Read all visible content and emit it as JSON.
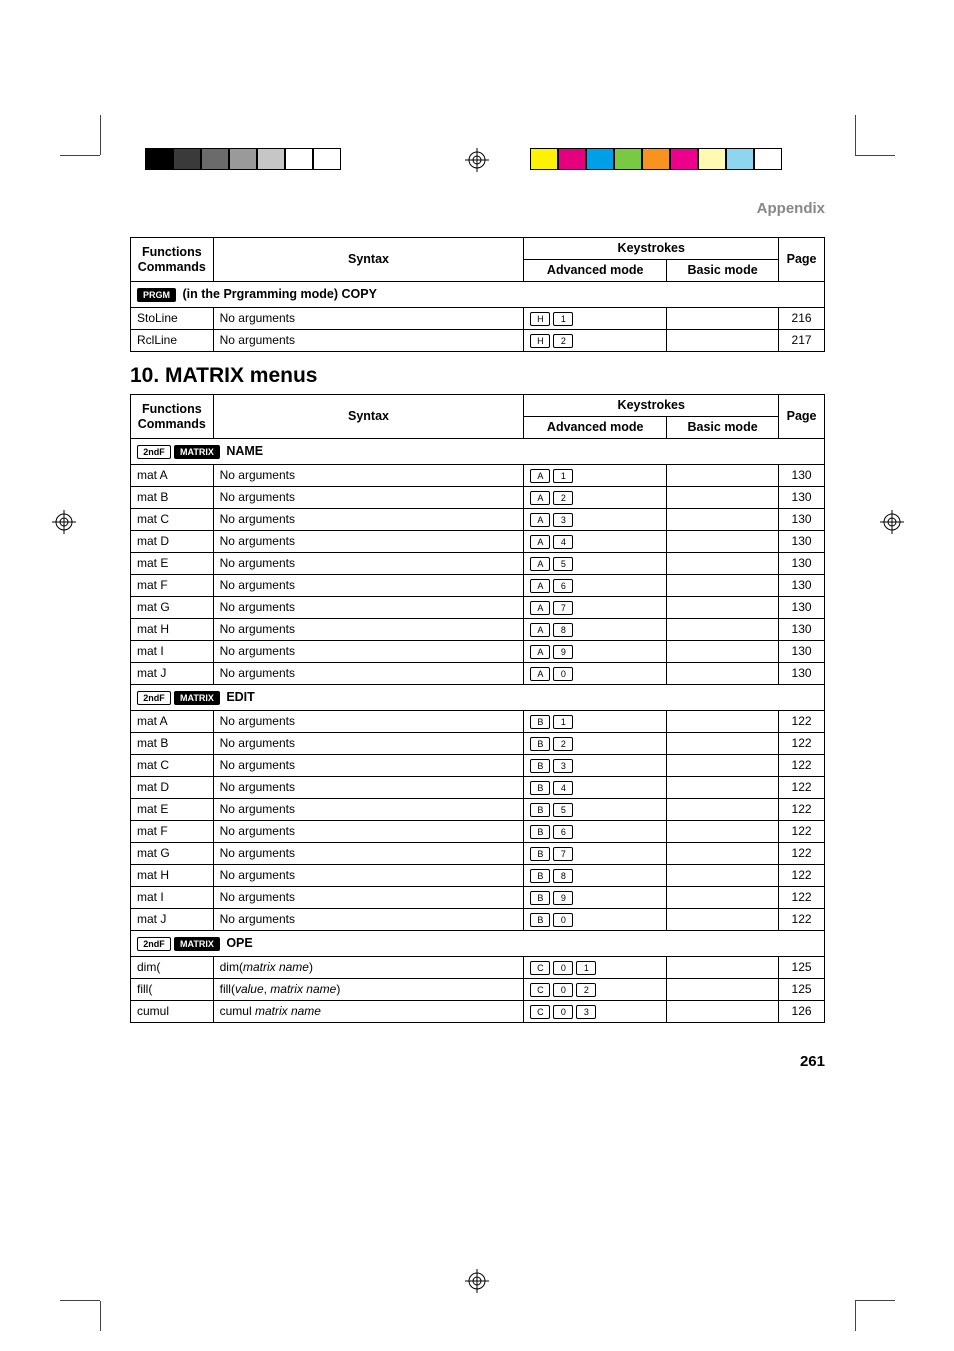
{
  "header": {
    "appendix": "Appendix"
  },
  "colorbar_left": [
    "#000000",
    "#3a3a3a",
    "#6b6b6b",
    "#9a9a9a",
    "#c6c6c6",
    "#ffffff",
    "#ffffff"
  ],
  "colorbar_right": [
    "#fff200",
    "#e4007f",
    "#00a0e9",
    "#7ac943",
    "#f7931e",
    "#ec008c",
    "#fff9b1",
    "#8ed6f0",
    "#ffffff"
  ],
  "table1": {
    "head": {
      "functions": "Functions",
      "commands": "Commands",
      "syntax": "Syntax",
      "keystrokes": "Keystrokes",
      "advanced": "Advanced mode",
      "basic": "Basic mode",
      "page": "Page"
    },
    "section": {
      "prefix_key": "PRGM",
      "suffix": " (in the Prgramming mode) COPY"
    },
    "rows": [
      {
        "cmd": "StoLine",
        "syn": "No arguments",
        "keys": [
          "H",
          "1"
        ],
        "page": "216"
      },
      {
        "cmd": "RclLine",
        "syn": "No arguments",
        "keys": [
          "H",
          "2"
        ],
        "page": "217"
      }
    ]
  },
  "title": "10. MATRIX menus",
  "table2": {
    "head": {
      "functions": "Functions",
      "commands": "Commands",
      "syntax": "Syntax",
      "keystrokes": "Keystrokes",
      "advanced": "Advanced mode",
      "basic": "Basic mode",
      "page": "Page"
    },
    "sections": [
      {
        "prefix_keys": [
          "2ndF",
          "MATRIX"
        ],
        "suffix": " NAME",
        "rows": [
          {
            "cmd": "mat A",
            "syn": "No arguments",
            "keys": [
              "A",
              "1"
            ],
            "page": "130"
          },
          {
            "cmd": "mat B",
            "syn": "No arguments",
            "keys": [
              "A",
              "2"
            ],
            "page": "130"
          },
          {
            "cmd": "mat C",
            "syn": "No arguments",
            "keys": [
              "A",
              "3"
            ],
            "page": "130"
          },
          {
            "cmd": "mat D",
            "syn": "No arguments",
            "keys": [
              "A",
              "4"
            ],
            "page": "130"
          },
          {
            "cmd": "mat E",
            "syn": "No arguments",
            "keys": [
              "A",
              "5"
            ],
            "page": "130"
          },
          {
            "cmd": "mat F",
            "syn": "No arguments",
            "keys": [
              "A",
              "6"
            ],
            "page": "130"
          },
          {
            "cmd": "mat G",
            "syn": "No arguments",
            "keys": [
              "A",
              "7"
            ],
            "page": "130"
          },
          {
            "cmd": "mat H",
            "syn": "No arguments",
            "keys": [
              "A",
              "8"
            ],
            "page": "130"
          },
          {
            "cmd": "mat I",
            "syn": "No arguments",
            "keys": [
              "A",
              "9"
            ],
            "page": "130"
          },
          {
            "cmd": "mat J",
            "syn": "No arguments",
            "keys": [
              "A",
              "0"
            ],
            "page": "130"
          }
        ]
      },
      {
        "prefix_keys": [
          "2ndF",
          "MATRIX"
        ],
        "suffix": " EDIT",
        "rows": [
          {
            "cmd": "mat A",
            "syn": "No arguments",
            "keys": [
              "B",
              "1"
            ],
            "page": "122"
          },
          {
            "cmd": "mat B",
            "syn": "No arguments",
            "keys": [
              "B",
              "2"
            ],
            "page": "122"
          },
          {
            "cmd": "mat C",
            "syn": "No arguments",
            "keys": [
              "B",
              "3"
            ],
            "page": "122"
          },
          {
            "cmd": "mat D",
            "syn": "No arguments",
            "keys": [
              "B",
              "4"
            ],
            "page": "122"
          },
          {
            "cmd": "mat E",
            "syn": "No arguments",
            "keys": [
              "B",
              "5"
            ],
            "page": "122"
          },
          {
            "cmd": "mat F",
            "syn": "No arguments",
            "keys": [
              "B",
              "6"
            ],
            "page": "122"
          },
          {
            "cmd": "mat G",
            "syn": "No arguments",
            "keys": [
              "B",
              "7"
            ],
            "page": "122"
          },
          {
            "cmd": "mat H",
            "syn": "No arguments",
            "keys": [
              "B",
              "8"
            ],
            "page": "122"
          },
          {
            "cmd": "mat I",
            "syn": "No arguments",
            "keys": [
              "B",
              "9"
            ],
            "page": "122"
          },
          {
            "cmd": "mat J",
            "syn": "No arguments",
            "keys": [
              "B",
              "0"
            ],
            "page": "122"
          }
        ]
      },
      {
        "prefix_keys": [
          "2ndF",
          "MATRIX"
        ],
        "suffix": " OPE",
        "rows": [
          {
            "cmd": "dim(",
            "syn_html": "dim(<em>matrix name</em>)",
            "keys": [
              "C",
              "0",
              "1"
            ],
            "page": "125"
          },
          {
            "cmd": "fill(",
            "syn_html": "fill(<em>value</em>, <em>matrix name</em>)",
            "keys": [
              "C",
              "0",
              "2"
            ],
            "page": "125"
          },
          {
            "cmd": "cumul",
            "syn_html": "cumul <em>matrix name</em>",
            "keys": [
              "C",
              "0",
              "3"
            ],
            "page": "126"
          }
        ]
      }
    ]
  },
  "pagenum": "261"
}
